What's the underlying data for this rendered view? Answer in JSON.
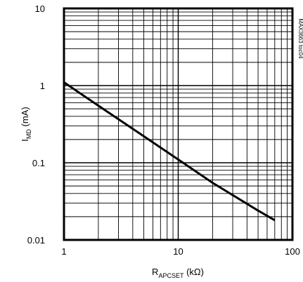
{
  "chart_data": {
    "type": "line",
    "x_scale": "log",
    "y_scale": "log",
    "xlim": [
      1,
      100
    ],
    "ylim": [
      0.01,
      10
    ],
    "grid": true,
    "x_ticks": [
      "1",
      "10",
      "100"
    ],
    "y_ticks": [
      "0.01",
      "0.1",
      "1",
      "10"
    ],
    "xlabel": {
      "main": "R",
      "sub": "APCSET",
      "unit": " (kΩ)"
    },
    "ylabel": {
      "main": "I",
      "sub": "MD",
      "unit": " (mA)"
    },
    "tag": "MAX3663 toc04",
    "series": [
      {
        "color": "#000000",
        "x": [
          1,
          2,
          5,
          10,
          20,
          50,
          70
        ],
        "y": [
          1.1,
          0.55,
          0.22,
          0.11,
          0.055,
          0.024,
          0.018
        ]
      }
    ]
  }
}
